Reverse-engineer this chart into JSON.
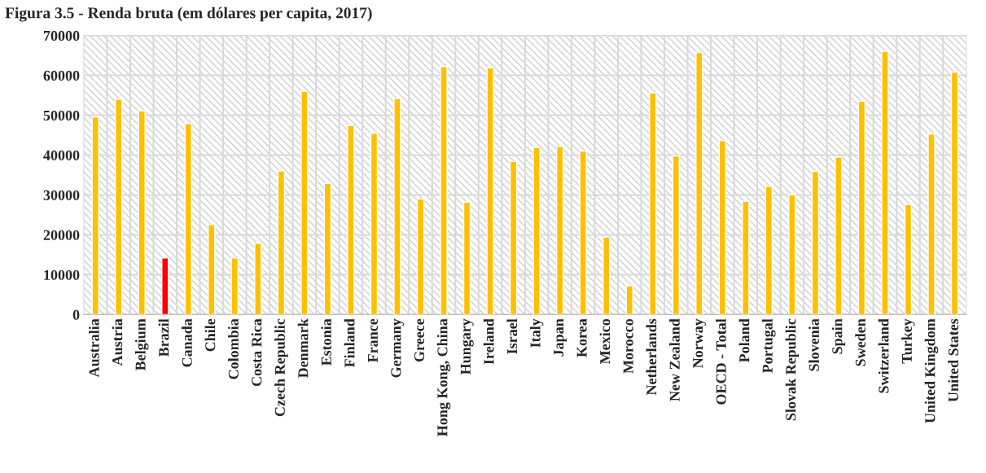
{
  "chart_data": {
    "type": "bar",
    "title": "Figura 3.5 - Renda bruta (em dólares per capita, 2017)",
    "categories": [
      "Australia",
      "Austria",
      "Belgium",
      "Brazil",
      "Canada",
      "Chile",
      "Colombia",
      "Costa Rica",
      "Czech Republic",
      "Denmark",
      "Estonia",
      "Finland",
      "France",
      "Germany",
      "Greece",
      "Hong Kong, China",
      "Hungary",
      "Ireland",
      "Israel",
      "Italy",
      "Japan",
      "Korea",
      "Mexico",
      "Morocco",
      "Netherlands",
      "New Zealand",
      "Norway",
      "OECD - Total",
      "Poland",
      "Portugal",
      "Slovak Republic",
      "Slovenia",
      "Spain",
      "Sweden",
      "Switzerland",
      "Turkey",
      "United Kingdom",
      "United States"
    ],
    "values": [
      49600,
      54000,
      51100,
      14200,
      47900,
      22600,
      14200,
      17900,
      36000,
      56000,
      32900,
      47400,
      45500,
      54200,
      29000,
      62200,
      28200,
      61900,
      38400,
      41900,
      42200,
      41000,
      19400,
      7200,
      55600,
      39800,
      65700,
      43600,
      28400,
      32200,
      30100,
      35900,
      39500,
      53500,
      66000,
      27600,
      45300,
      60800
    ],
    "colors": [
      "#ffc000",
      "#ffc000",
      "#ffc000",
      "#ff0000",
      "#ffc000",
      "#ffc000",
      "#ffc000",
      "#ffc000",
      "#ffc000",
      "#ffc000",
      "#ffc000",
      "#ffc000",
      "#ffc000",
      "#ffc000",
      "#ffc000",
      "#ffc000",
      "#ffc000",
      "#ffc000",
      "#ffc000",
      "#ffc000",
      "#ffc000",
      "#ffc000",
      "#ffc000",
      "#ffc000",
      "#ffc000",
      "#ffc000",
      "#ffc000",
      "#ffc000",
      "#ffc000",
      "#ffc000",
      "#ffc000",
      "#ffc000",
      "#ffc000",
      "#ffc000",
      "#ffc000",
      "#ffc000",
      "#ffc000",
      "#ffc000"
    ],
    "ylim": [
      0,
      70000
    ],
    "yticks": [
      0,
      10000,
      20000,
      30000,
      40000,
      50000,
      60000,
      70000
    ],
    "grid": true,
    "legend": false
  }
}
